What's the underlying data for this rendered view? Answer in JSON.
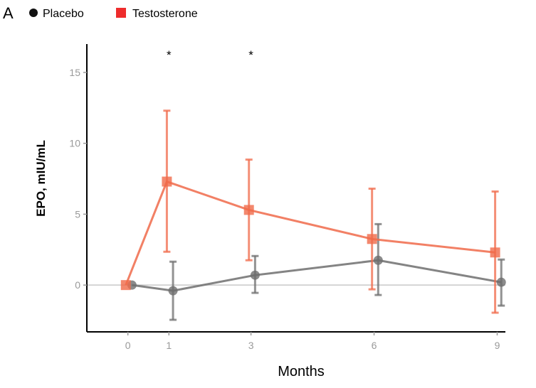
{
  "panel_label": "A",
  "colors": {
    "placebo": "#6e6e6e",
    "testosterone": "#f06a4a",
    "legend_placebo": "#111111",
    "legend_testosterone": "#ee2c2c",
    "axis": "#000000",
    "tick": "#9a9a9a",
    "reference_line": "#c8c8c8"
  },
  "chart_data": {
    "type": "line",
    "title": "",
    "xlabel": "Months",
    "ylabel": "EPO, mIU/mL",
    "xlim": [
      -1,
      9.2
    ],
    "ylim": [
      -3.3,
      17
    ],
    "x_ticks": [
      0,
      1,
      3,
      6,
      9
    ],
    "x_tick_labels": [
      "0",
      "1",
      "3",
      "6",
      "9"
    ],
    "y_ticks": [
      0,
      5,
      10,
      15
    ],
    "y_tick_labels": [
      "0",
      "5",
      "10",
      "15"
    ],
    "reference_line_y": 0,
    "legend": {
      "position": "top-left",
      "entries": [
        "Placebo",
        "Testosterone"
      ]
    },
    "series": [
      {
        "name": "Placebo",
        "marker": "circle",
        "x": [
          0.1,
          1.1,
          3.1,
          6.1,
          9.1
        ],
        "y": [
          0,
          -0.4,
          0.7,
          1.75,
          0.2
        ],
        "err_low": [
          0,
          -2.45,
          -0.55,
          -0.7,
          -1.45
        ],
        "err_high": [
          0,
          1.65,
          2.05,
          4.3,
          1.8
        ]
      },
      {
        "name": "Testosterone",
        "marker": "square",
        "x": [
          -0.05,
          0.95,
          2.95,
          5.95,
          8.95
        ],
        "y": [
          0,
          7.3,
          5.3,
          3.25,
          2.3
        ],
        "err_low": [
          0,
          2.35,
          1.75,
          -0.3,
          -1.95
        ],
        "err_high": [
          0,
          12.3,
          8.85,
          6.8,
          6.6
        ]
      }
    ],
    "annotations": [
      {
        "text": "*",
        "x": 1
      },
      {
        "text": "*",
        "x": 3
      }
    ]
  }
}
